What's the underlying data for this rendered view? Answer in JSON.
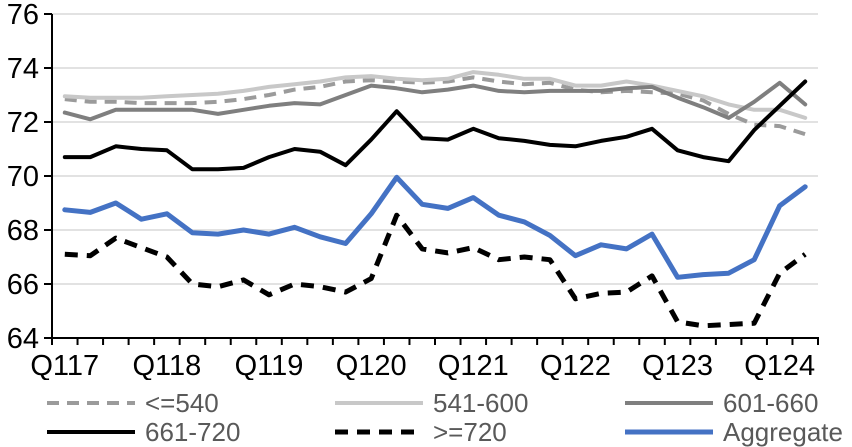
{
  "chart_data": {
    "type": "line",
    "title": "",
    "xlabel": "",
    "ylabel": "",
    "grid": "horizontal",
    "legend_position": "bottom",
    "legend_text_color": "#595959",
    "gridline_color": "#d9d9d9",
    "axis_color": "#000000",
    "y_axis": {
      "min": 64,
      "max": 76,
      "step": 2,
      "tick_labels": [
        "76",
        "74",
        "72",
        "70",
        "68",
        "66",
        "64"
      ]
    },
    "x_axis": {
      "n_points": 30,
      "tick_labels": [
        "Q117",
        "Q118",
        "Q119",
        "Q120",
        "Q121",
        "Q122",
        "Q123",
        "Q124"
      ],
      "label_every": 4
    },
    "series": [
      {
        "name": "<=540",
        "color": "#9b9b9b",
        "dash": "12 8",
        "width": 4,
        "values": [
          72.85,
          72.75,
          72.75,
          72.7,
          72.7,
          72.7,
          72.75,
          72.85,
          73.0,
          73.2,
          73.3,
          73.5,
          73.55,
          73.5,
          73.45,
          73.5,
          73.65,
          73.5,
          73.4,
          73.45,
          73.2,
          73.1,
          73.15,
          73.1,
          73.05,
          72.8,
          72.3,
          71.9,
          71.85,
          71.55
        ]
      },
      {
        "name": "541-600",
        "color": "#c8c8c8",
        "dash": "",
        "width": 4,
        "values": [
          72.95,
          72.9,
          72.9,
          72.9,
          72.95,
          73.0,
          73.05,
          73.15,
          73.3,
          73.4,
          73.5,
          73.65,
          73.7,
          73.6,
          73.55,
          73.6,
          73.85,
          73.75,
          73.6,
          73.6,
          73.35,
          73.35,
          73.5,
          73.35,
          73.15,
          72.95,
          72.65,
          72.45,
          72.45,
          72.15
        ]
      },
      {
        "name": "601-660",
        "color": "#7f7f7f",
        "dash": "",
        "width": 4,
        "values": [
          72.35,
          72.1,
          72.45,
          72.45,
          72.45,
          72.45,
          72.3,
          72.45,
          72.6,
          72.7,
          72.65,
          73.0,
          73.35,
          73.25,
          73.1,
          73.2,
          73.35,
          73.15,
          73.1,
          73.15,
          73.15,
          73.15,
          73.25,
          73.3,
          72.9,
          72.55,
          72.15,
          72.75,
          73.45,
          72.65
        ]
      },
      {
        "name": "661-720",
        "color": "#000000",
        "dash": "",
        "width": 4,
        "values": [
          70.7,
          70.7,
          71.1,
          71.0,
          70.95,
          70.25,
          70.25,
          70.3,
          70.7,
          71.0,
          70.9,
          70.4,
          71.35,
          72.4,
          71.4,
          71.35,
          71.75,
          71.4,
          71.3,
          71.15,
          71.1,
          71.3,
          71.45,
          71.75,
          70.95,
          70.7,
          70.55,
          71.7,
          72.6,
          73.5
        ]
      },
      {
        "name": ">=720",
        "color": "#000000",
        "dash": "13 9",
        "width": 5,
        "values": [
          67.1,
          67.05,
          67.7,
          67.35,
          67.0,
          66.0,
          65.9,
          66.15,
          65.6,
          66.0,
          65.9,
          65.7,
          66.2,
          68.55,
          67.3,
          67.15,
          67.35,
          66.9,
          67.0,
          66.9,
          65.45,
          65.65,
          65.7,
          66.3,
          64.6,
          64.45,
          64.5,
          64.55,
          66.4,
          67.1
        ]
      },
      {
        "name": "Aggregate",
        "color": "#4472c4",
        "dash": "",
        "width": 5,
        "values": [
          68.75,
          68.65,
          69.0,
          68.4,
          68.6,
          67.9,
          67.85,
          68.0,
          67.85,
          68.1,
          67.75,
          67.5,
          68.6,
          69.95,
          68.95,
          68.8,
          69.2,
          68.55,
          68.3,
          67.8,
          67.05,
          67.45,
          67.3,
          67.85,
          66.25,
          66.35,
          66.4,
          66.9,
          68.9,
          69.6
        ]
      }
    ],
    "legend_rows": [
      [
        "<=540",
        "541-600",
        "601-660"
      ],
      [
        "661-720",
        ">=720",
        "Aggregate"
      ]
    ]
  }
}
